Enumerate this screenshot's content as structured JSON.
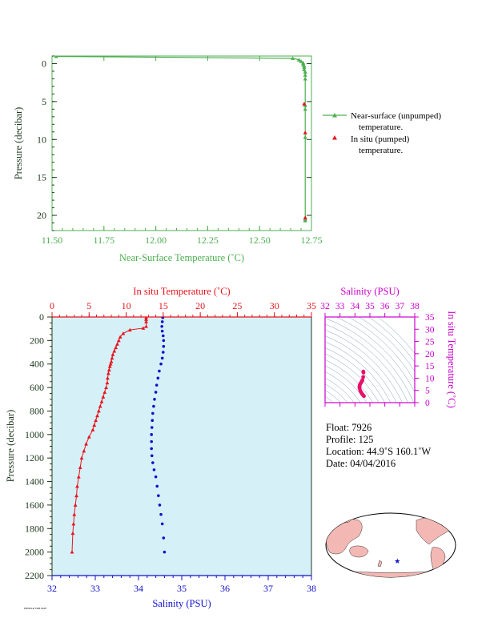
{
  "colors": {
    "green": "#4caf50",
    "red": "#e8141c",
    "blue": "#1010cc",
    "magenta": "#cc00cc",
    "dark_green": "#1f3a1f",
    "panel_bg": "#d6f0f8",
    "land": "#f4b8b4"
  },
  "chart_data": [
    {
      "type": "line",
      "xlabel": "Near-Surface Temperature (˚C)",
      "ylabel": "Pressure (decibar)",
      "xlim": [
        11.5,
        12.75
      ],
      "ylim": [
        22,
        -1
      ],
      "xticks": [
        "11.50",
        "11.75",
        "12.00",
        "12.25",
        "12.50",
        "12.75"
      ],
      "yticks": [
        "0",
        "5",
        "10",
        "15",
        "20"
      ],
      "legend": [
        "Near-surface (unpumped)",
        "temperature.",
        "In situ (pumped)",
        "temperature."
      ],
      "legend_placement": "right",
      "series": [
        {
          "name": "Near-surface (unpumped) temperature.",
          "marker": "triangle",
          "x": [
            11.52,
            12.66,
            12.69,
            12.7,
            12.71,
            12.71,
            12.715,
            12.715,
            12.715,
            12.72,
            12.72,
            12.72,
            12.72,
            12.72,
            12.72,
            12.72,
            12.72
          ],
          "y": [
            -0.95,
            -0.7,
            -0.5,
            -0.3,
            -0.1,
            0.1,
            0.3,
            0.5,
            0.8,
            1.1,
            1.5,
            2.0,
            5.5,
            6.0,
            9.7,
            20.5,
            20.7
          ]
        },
        {
          "name": "In situ (pumped) temperature.",
          "marker": "triangle",
          "x": [
            12.715,
            12.72,
            12.72
          ],
          "y": [
            5.3,
            9.1,
            20.3
          ]
        }
      ]
    },
    {
      "type": "line",
      "x2label": "In situ Temperature (˚C)",
      "xlabel": "Salinity (PSU)",
      "ylabel": "Pressure (decibar)",
      "temp_lim": [
        0,
        35
      ],
      "sal_lim": [
        32,
        38
      ],
      "ylim": [
        2200,
        0
      ],
      "temp_ticks": [
        "0",
        "5",
        "10",
        "15",
        "20",
        "25",
        "30",
        "35"
      ],
      "sal_ticks": [
        "32",
        "33",
        "34",
        "35",
        "36",
        "37",
        "38"
      ],
      "yticks": [
        "0",
        "200",
        "400",
        "600",
        "800",
        "1000",
        "1200",
        "1400",
        "1600",
        "1800",
        "2000",
        "2200"
      ],
      "series": [
        {
          "name": "In situ Temperature",
          "axis": "temperature",
          "marker": "triangle",
          "x": [
            12.7,
            12.7,
            12.7,
            12.7,
            12.3,
            10.5,
            9.6,
            9.2,
            9.0,
            8.8,
            8.6,
            8.4,
            8.2,
            8.1,
            8.0,
            7.9,
            7.8,
            7.7,
            7.6,
            7.5,
            7.45,
            7.3,
            7.1,
            6.9,
            6.7,
            6.5,
            6.3,
            6.1,
            5.9,
            5.7,
            5.5,
            5.0,
            4.6,
            4.3,
            4.0,
            3.8,
            3.6,
            3.4,
            3.3,
            3.15,
            3.0,
            2.9,
            2.8,
            2.7
          ],
          "y": [
            5,
            20,
            40,
            80,
            95,
            110,
            140,
            170,
            200,
            230,
            260,
            290,
            320,
            350,
            380,
            400,
            420,
            450,
            480,
            520,
            560,
            600,
            640,
            680,
            720,
            760,
            800,
            840,
            880,
            920,
            960,
            1020,
            1080,
            1140,
            1200,
            1280,
            1360,
            1440,
            1520,
            1600,
            1680,
            1760,
            1840,
            2000
          ]
        },
        {
          "name": "Salinity",
          "axis": "salinity",
          "marker": "dot",
          "x": [
            34.56,
            34.55,
            34.54,
            34.55,
            34.57,
            34.58,
            34.58,
            34.57,
            34.55,
            34.52,
            34.48,
            34.45,
            34.42,
            34.4,
            34.37,
            34.35,
            34.33,
            34.32,
            34.31,
            34.3,
            34.3,
            34.3,
            34.31,
            34.33,
            34.36,
            34.4,
            34.43,
            34.46,
            34.49,
            34.52,
            34.55,
            34.58,
            34.6
          ],
          "y": [
            5,
            40,
            80,
            120,
            160,
            200,
            250,
            300,
            350,
            400,
            460,
            520,
            580,
            640,
            700,
            760,
            820,
            880,
            940,
            1000,
            1060,
            1120,
            1180,
            1240,
            1300,
            1360,
            1440,
            1520,
            1600,
            1680,
            1760,
            1880,
            2000
          ]
        }
      ]
    },
    {
      "type": "scatter",
      "xlabel": "Salinity (PSU)",
      "ylabel": "In situ Temperature (˚C)",
      "xlim": [
        32,
        38
      ],
      "ylim": [
        0,
        35
      ],
      "xticks": [
        "32",
        "33",
        "34",
        "35",
        "36",
        "37",
        "38"
      ],
      "yticks": [
        "0",
        "5",
        "10",
        "15",
        "20",
        "25",
        "30",
        "35"
      ],
      "series": [
        {
          "name": "T-S profile",
          "x": [
            34.56,
            34.57,
            34.55,
            34.5,
            34.45,
            34.4,
            34.36,
            34.32,
            34.3,
            34.31,
            34.35,
            34.4,
            34.45,
            34.5,
            34.55,
            34.6
          ],
          "y": [
            12.7,
            12.3,
            10.5,
            9.2,
            8.6,
            8.1,
            7.7,
            7.1,
            6.5,
            5.9,
            5.0,
            4.3,
            3.8,
            3.4,
            3.0,
            2.7
          ]
        }
      ]
    }
  ],
  "info": {
    "float": "Float:  7926",
    "profile": "Profile:  125",
    "location": "Location:  44.9˚S  160.1˚W",
    "date": "Date:  04/04/2016"
  },
  "map": {
    "marker_icon": "star-icon",
    "marker_lon": -160.1,
    "marker_lat": -44.9
  },
  "footer": "PROFILE 7926 0125"
}
